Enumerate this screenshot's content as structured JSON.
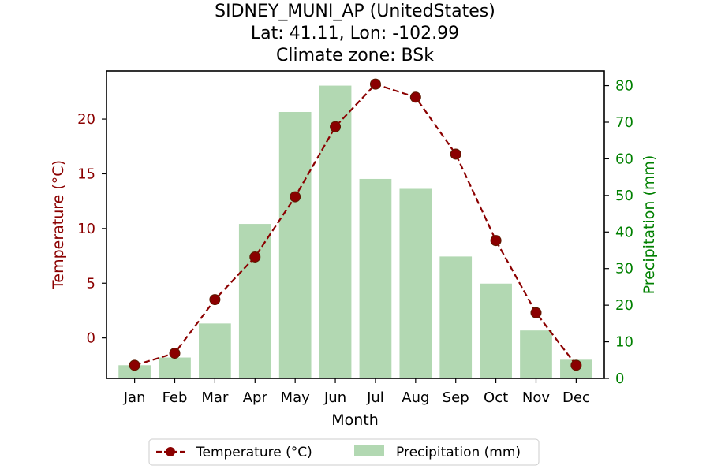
{
  "chart_data": {
    "type": "bar",
    "title": [
      "SIDNEY_MUNI_AP (UnitedStates)",
      "Lat: 41.11, Lon: -102.99",
      "Climate zone: BSk"
    ],
    "xlabel": "Month",
    "categories": [
      "Jan",
      "Feb",
      "Mar",
      "Apr",
      "May",
      "Jun",
      "Jul",
      "Aug",
      "Sep",
      "Oct",
      "Nov",
      "Dec"
    ],
    "temperature": {
      "name": "Temperature (°C)",
      "type": "line",
      "axis": "left",
      "ylabel": "Temperature (°C)",
      "ylim": [
        -3.7,
        24.4
      ],
      "yticks": [
        0,
        5,
        10,
        15,
        20
      ],
      "color": "#8b0000",
      "values": [
        -2.5,
        -1.4,
        3.5,
        7.4,
        12.9,
        19.3,
        23.2,
        22.0,
        16.8,
        8.9,
        2.3,
        -2.5
      ]
    },
    "precipitation": {
      "name": "Precipitation (mm)",
      "type": "bar",
      "axis": "right",
      "ylabel": "Precipitation (mm)",
      "ylim": [
        0,
        84
      ],
      "yticks": [
        0,
        10,
        20,
        30,
        40,
        50,
        60,
        70,
        80
      ],
      "color": "#b2d8b2",
      "values": [
        3.6,
        5.7,
        15.0,
        42.2,
        72.8,
        80.0,
        54.5,
        51.8,
        33.3,
        25.9,
        13.1,
        5.1
      ]
    },
    "axis_colors": {
      "left": "#8b0000",
      "right": "#008000"
    },
    "legend": {
      "placement": "bottom-center",
      "entries": [
        "Temperature (°C)",
        "Precipitation (mm)"
      ]
    }
  }
}
